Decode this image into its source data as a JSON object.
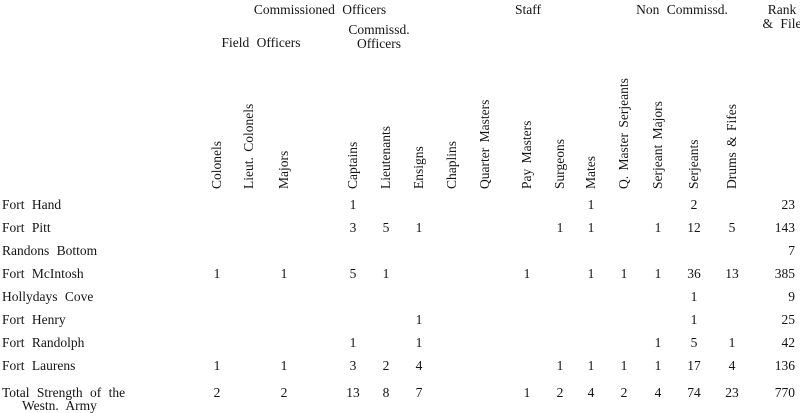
{
  "groups": {
    "commissioned_officers": "Commissioned Officers",
    "field_officers": "Field Officers",
    "commissd_officers_line1": "Commissd.",
    "commissd_officers_line2": "Officers",
    "staff": "Staff",
    "non_commissd": "Non Commissd.",
    "rank_file_line1": "Rank",
    "rank_file_line2": "& File"
  },
  "table": {
    "columns": [
      "Colonels",
      "Lieut. Colonels",
      "Majors",
      "Captains",
      "Lieutenants",
      "Ensigns",
      "Chaplins",
      "Quarter Masters",
      "Pay Masters",
      "Surgeons",
      "Mates",
      "Q. Master Serjeants",
      "Serjeant Majors",
      "Serjeants",
      "Drums & Fifes"
    ],
    "rank_file_column": "Rank & File",
    "rows": [
      {
        "label": "Fort Hand",
        "values": [
          "",
          "",
          "",
          "1",
          "",
          "",
          "",
          "",
          "",
          "",
          "1",
          "",
          "",
          "2",
          ""
        ],
        "rank_file": "23"
      },
      {
        "label": "Fort Pitt",
        "values": [
          "",
          "",
          "",
          "3",
          "5",
          "1",
          "",
          "",
          "",
          "1",
          "1",
          "",
          "1",
          "12",
          "5"
        ],
        "rank_file": "143"
      },
      {
        "label": "Randons Bottom",
        "values": [
          "",
          "",
          "",
          "",
          "",
          "",
          "",
          "",
          "",
          "",
          "",
          "",
          "",
          "",
          ""
        ],
        "rank_file": "7"
      },
      {
        "label": "Fort McIntosh",
        "values": [
          "1",
          "",
          "1",
          "5",
          "1",
          "",
          "",
          "",
          "1",
          "",
          "1",
          "1",
          "1",
          "36",
          "13"
        ],
        "rank_file": "385"
      },
      {
        "label": "Hollydays Cove",
        "values": [
          "",
          "",
          "",
          "",
          "",
          "",
          "",
          "",
          "",
          "",
          "",
          "",
          "",
          "1",
          ""
        ],
        "rank_file": "9"
      },
      {
        "label": "Fort Henry",
        "values": [
          "",
          "",
          "",
          "",
          "",
          "1",
          "",
          "",
          "",
          "",
          "",
          "",
          "",
          "1",
          ""
        ],
        "rank_file": "25"
      },
      {
        "label": "Fort Randolph",
        "values": [
          "",
          "",
          "",
          "1",
          "",
          "1",
          "",
          "",
          "",
          "",
          "",
          "",
          "1",
          "5",
          "1"
        ],
        "rank_file": "42"
      },
      {
        "label": "Fort Laurens",
        "values": [
          "1",
          "",
          "1",
          "3",
          "2",
          "4",
          "",
          "",
          "",
          "1",
          "1",
          "1",
          "1",
          "17",
          "4"
        ],
        "rank_file": "136"
      },
      {
        "label": "Total Strength of the",
        "label_line2": "Westn. Army",
        "values": [
          "2",
          "",
          "2",
          "13",
          "8",
          "7",
          "",
          "",
          "1",
          "2",
          "4",
          "2",
          "4",
          "74",
          "23"
        ],
        "rank_file": "770"
      }
    ]
  },
  "colors": {
    "text": "#141414",
    "background": "#ffffff"
  }
}
